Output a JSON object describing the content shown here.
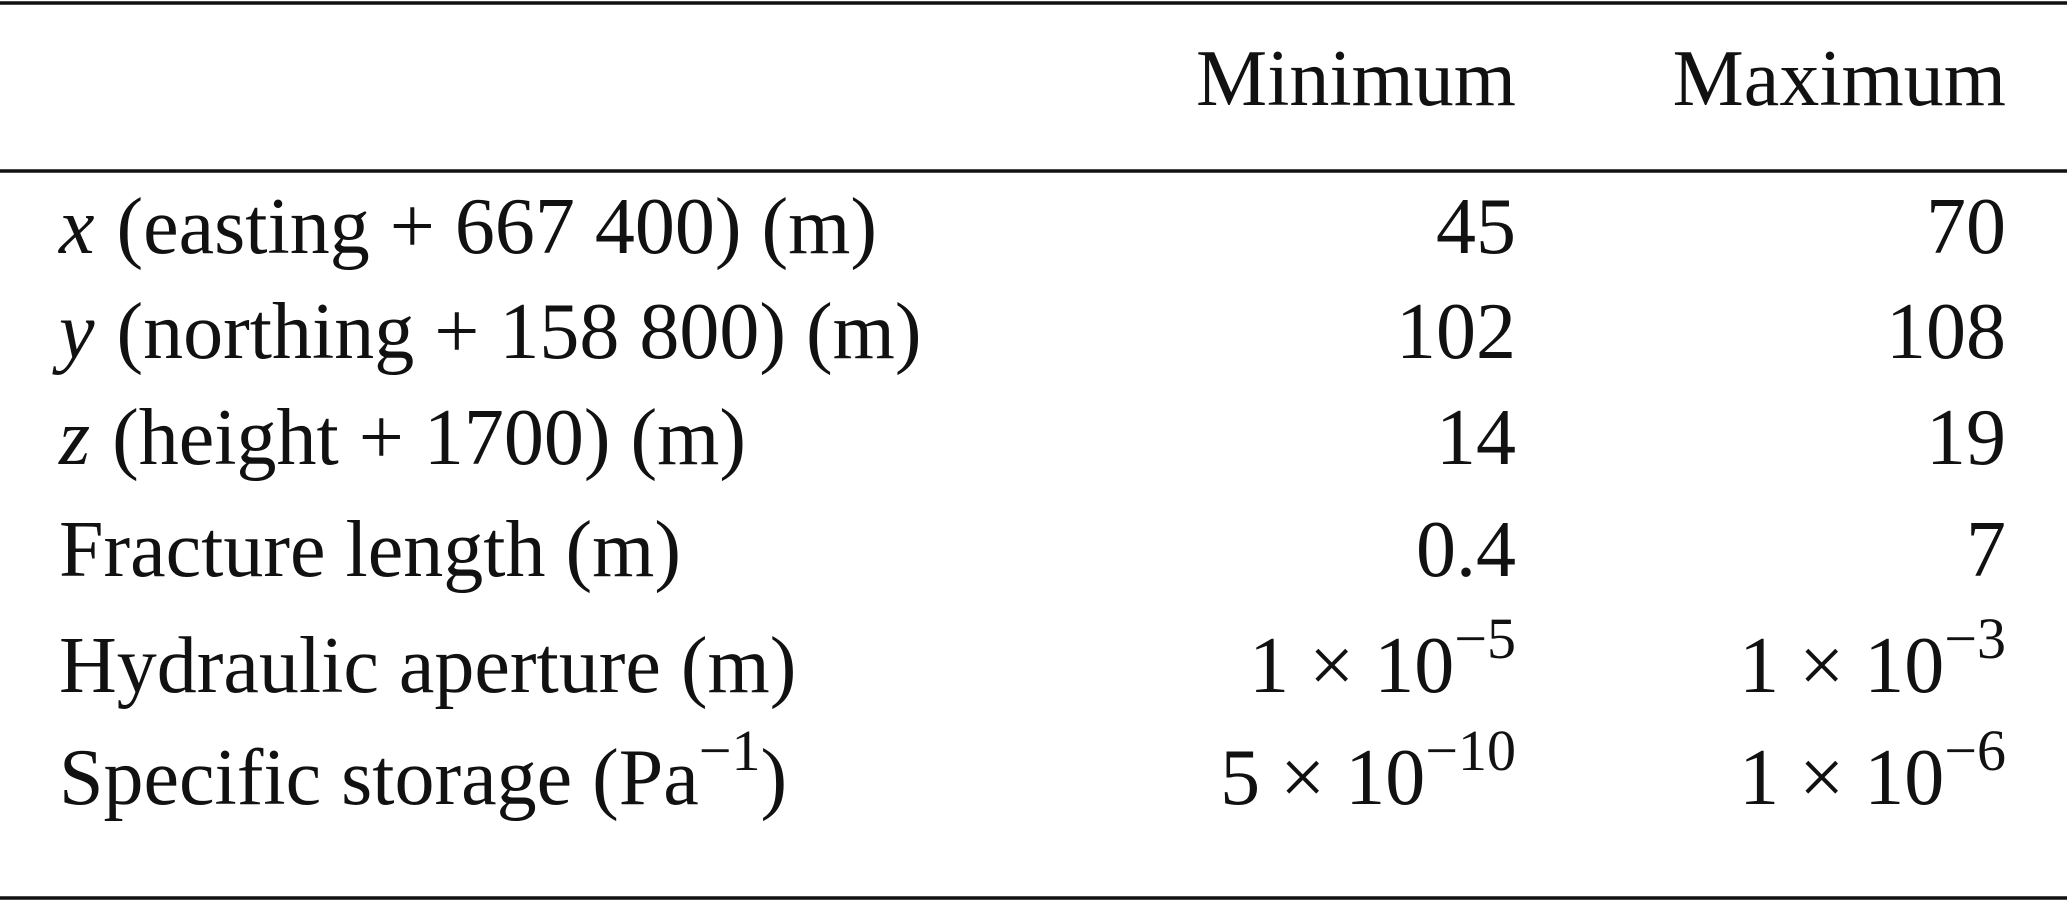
{
  "table": {
    "columns": [
      "Minimum",
      "Maximum"
    ],
    "rows": [
      {
        "label": [
          {
            "italic": "x"
          },
          {
            "text": "(easting + 667 400) (m)"
          }
        ],
        "min": "45",
        "max": "70"
      },
      {
        "label": [
          {
            "italic": "y"
          },
          {
            "text": "(northing + 158 800) (m)"
          }
        ],
        "min": "102",
        "max": "108"
      },
      {
        "label": [
          {
            "italic": "z"
          },
          {
            "text": "(height + 1700) (m)"
          }
        ],
        "min": "14",
        "max": "19"
      },
      {
        "label": [
          {
            "text": "Fracture length (m)"
          }
        ],
        "min": "0.4",
        "max": "7"
      },
      {
        "label": [
          {
            "text": "Hydraulic aperture (m)"
          }
        ],
        "min": {
          "text": "1 × 10",
          "sup": "−5"
        },
        "max": {
          "text": "1 × 10",
          "sup": "−3"
        }
      },
      {
        "label": [
          {
            "text": "Specific storage (Pa"
          },
          {
            "sup": "−1"
          },
          {
            "text": ")"
          }
        ],
        "min": {
          "text": "5 × 10",
          "sup": "−10"
        },
        "max": {
          "text": "1 × 10",
          "sup": "−6"
        }
      }
    ]
  }
}
